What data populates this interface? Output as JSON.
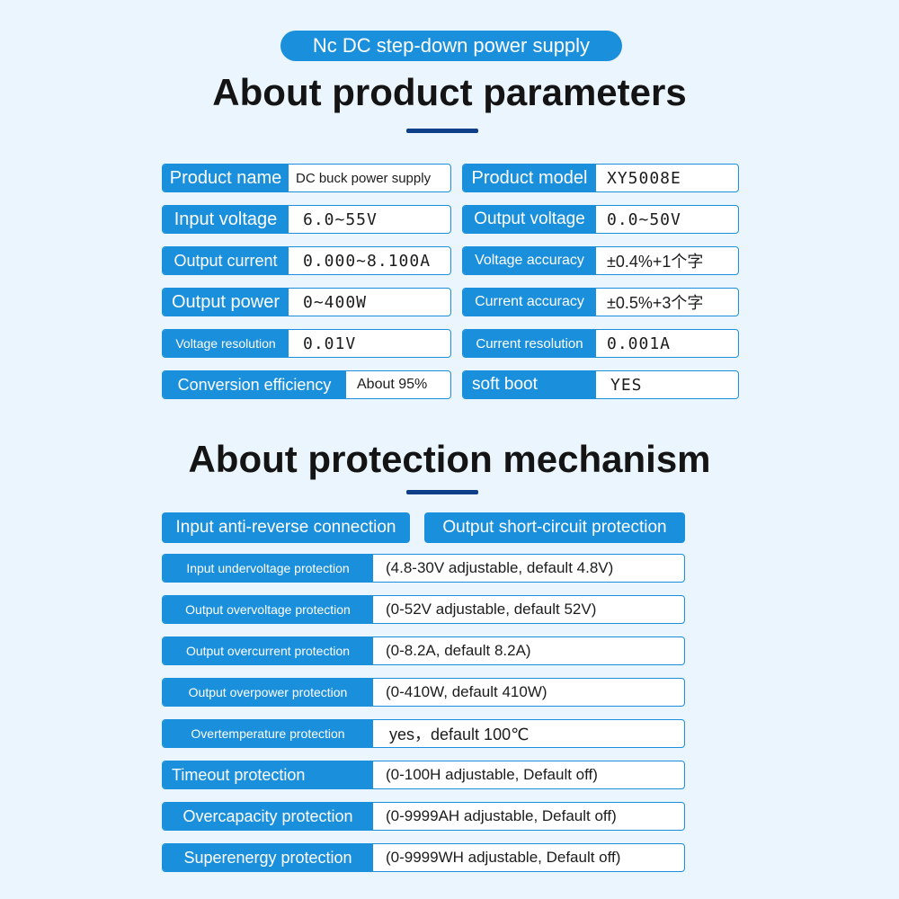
{
  "badge": "Nc DC step-down power supply",
  "heading1": "About product parameters",
  "heading2": "About protection mechanism",
  "parameters": [
    {
      "label": "Product name",
      "value": "DC buck power supply"
    },
    {
      "label": "Product model",
      "value": "XY5008E"
    },
    {
      "label": "Input voltage",
      "value": "6.0~55V"
    },
    {
      "label": "Output voltage",
      "value": "0.0~50V"
    },
    {
      "label": "Output current",
      "value": "0.000~8.100A"
    },
    {
      "label": "Voltage accuracy",
      "value": "±0.4%+1个字"
    },
    {
      "label": "Output power",
      "value": "0~400W"
    },
    {
      "label": "Current accuracy",
      "value": "±0.5%+3个字"
    },
    {
      "label": "Voltage resolution",
      "value": "0.01V"
    },
    {
      "label": "Current resolution",
      "value": "0.001A"
    },
    {
      "label": "Conversion efficiency",
      "value": "About 95%"
    },
    {
      "label": "soft boot",
      "value": "YES"
    }
  ],
  "features": [
    "Input anti-reverse connection",
    "Output short-circuit protection"
  ],
  "protections": [
    {
      "label": "Input undervoltage protection",
      "value": "(4.8-30V adjustable, default 4.8V)"
    },
    {
      "label": "Output overvoltage protection",
      "value": "(0-52V adjustable, default 52V)"
    },
    {
      "label": "Output overcurrent protection",
      "value": "(0-8.2A, default 8.2A)"
    },
    {
      "label": "Output overpower protection",
      "value": "(0-410W, default 410W)"
    },
    {
      "label": "Overtemperature protection",
      "value": "yes，default 100℃"
    },
    {
      "label": "Timeout protection",
      "value": "(0-100H adjustable, Default off)"
    },
    {
      "label": "Overcapacity protection",
      "value": "(0-9999AH adjustable, Default off)"
    },
    {
      "label": "Superenergy protection",
      "value": "(0-9999WH adjustable, Default off)"
    }
  ]
}
